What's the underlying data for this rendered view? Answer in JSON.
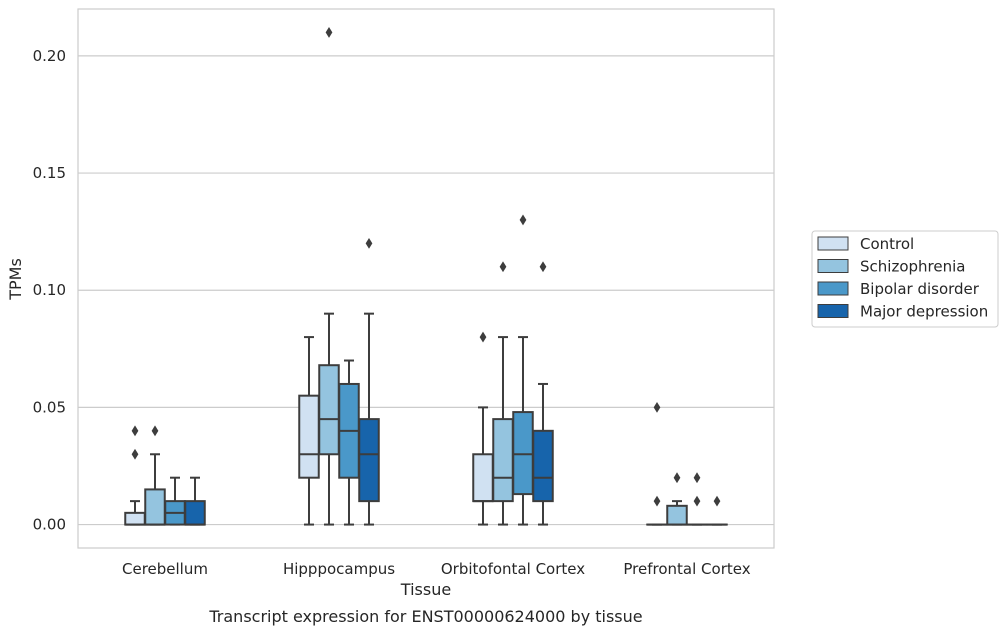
{
  "chart_data": {
    "type": "box",
    "xlabel": "Tissue",
    "ylabel": "TPMs",
    "caption": "Transcript expression for ENST00000624000 by tissue",
    "ylim": [
      -0.01,
      0.22
    ],
    "yticks": [
      0.0,
      0.05,
      0.1,
      0.15,
      0.2
    ],
    "ytick_labels": [
      "0.00",
      "0.05",
      "0.10",
      "0.15",
      "0.20"
    ],
    "grid": true,
    "legend_position": "right",
    "categories": [
      "Cerebellum",
      "Hipppocampus",
      "Orbitofontal Cortex",
      "Prefrontal Cortex"
    ],
    "series": [
      {
        "name": "Control",
        "color": "#d0e1f2",
        "boxes": [
          {
            "whisker_low": 0.0,
            "q1": 0.0,
            "median": 0.0,
            "q3": 0.005,
            "whisker_high": 0.01,
            "outliers": [
              0.03,
              0.04
            ]
          },
          {
            "whisker_low": 0.0,
            "q1": 0.02,
            "median": 0.03,
            "q3": 0.055,
            "whisker_high": 0.08,
            "outliers": []
          },
          {
            "whisker_low": 0.0,
            "q1": 0.01,
            "median": 0.01,
            "q3": 0.03,
            "whisker_high": 0.05,
            "outliers": [
              0.08
            ]
          },
          {
            "whisker_low": 0.0,
            "q1": 0.0,
            "median": 0.0,
            "q3": 0.0,
            "whisker_high": 0.0,
            "outliers": [
              0.01,
              0.05
            ]
          }
        ]
      },
      {
        "name": "Schizophrenia",
        "color": "#94c4df",
        "boxes": [
          {
            "whisker_low": 0.0,
            "q1": 0.0,
            "median": 0.0,
            "q3": 0.015,
            "whisker_high": 0.03,
            "outliers": [
              0.04
            ]
          },
          {
            "whisker_low": 0.0,
            "q1": 0.03,
            "median": 0.045,
            "q3": 0.068,
            "whisker_high": 0.09,
            "outliers": [
              0.21
            ]
          },
          {
            "whisker_low": 0.0,
            "q1": 0.01,
            "median": 0.02,
            "q3": 0.045,
            "whisker_high": 0.08,
            "outliers": [
              0.11
            ]
          },
          {
            "whisker_low": 0.0,
            "q1": 0.0,
            "median": 0.0,
            "q3": 0.008,
            "whisker_high": 0.01,
            "outliers": [
              0.02
            ]
          }
        ]
      },
      {
        "name": "Bipolar disorder",
        "color": "#4a98c9",
        "boxes": [
          {
            "whisker_low": 0.0,
            "q1": 0.0,
            "median": 0.005,
            "q3": 0.01,
            "whisker_high": 0.02,
            "outliers": []
          },
          {
            "whisker_low": 0.0,
            "q1": 0.02,
            "median": 0.04,
            "q3": 0.06,
            "whisker_high": 0.07,
            "outliers": []
          },
          {
            "whisker_low": 0.0,
            "q1": 0.013,
            "median": 0.03,
            "q3": 0.048,
            "whisker_high": 0.08,
            "outliers": [
              0.13
            ]
          },
          {
            "whisker_low": 0.0,
            "q1": 0.0,
            "median": 0.0,
            "q3": 0.0,
            "whisker_high": 0.0,
            "outliers": [
              0.01,
              0.02
            ]
          }
        ]
      },
      {
        "name": "Major depression",
        "color": "#1764ab",
        "boxes": [
          {
            "whisker_low": 0.0,
            "q1": 0.0,
            "median": 0.0,
            "q3": 0.01,
            "whisker_high": 0.02,
            "outliers": []
          },
          {
            "whisker_low": 0.0,
            "q1": 0.01,
            "median": 0.03,
            "q3": 0.045,
            "whisker_high": 0.09,
            "outliers": [
              0.12
            ]
          },
          {
            "whisker_low": 0.0,
            "q1": 0.01,
            "median": 0.02,
            "q3": 0.04,
            "whisker_high": 0.06,
            "outliers": [
              0.11
            ]
          },
          {
            "whisker_low": 0.0,
            "q1": 0.0,
            "median": 0.0,
            "q3": 0.0,
            "whisker_high": 0.0,
            "outliers": [
              0.01
            ]
          }
        ]
      }
    ]
  }
}
